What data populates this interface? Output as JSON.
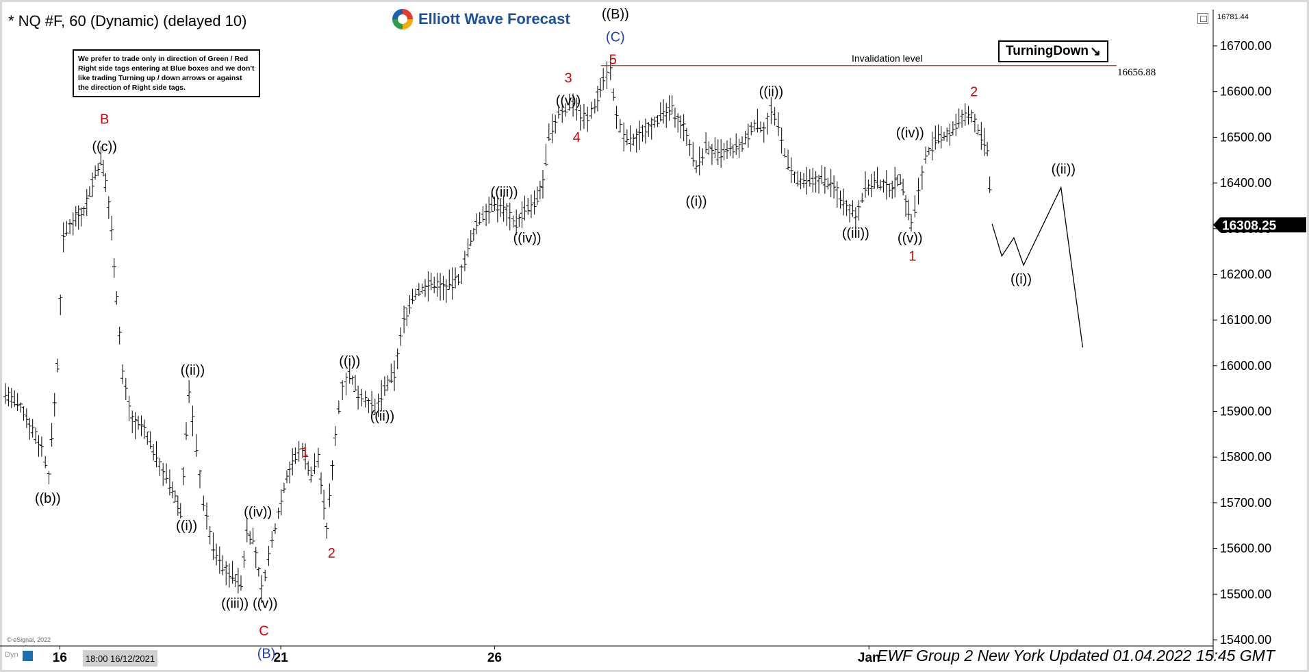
{
  "header": {
    "title": "* NQ #F, 60 (Dynamic) (delayed 10)",
    "logo_text": "Elliott Wave Forecast"
  },
  "notice": {
    "text": "We prefer to trade only in direction of Green / Red Right side tags entering at Blue boxes and we don't like trading Turning up / down arrows or against the direction of Right side tags."
  },
  "turning_tag": {
    "label": "TurningDown",
    "arrow": "↘"
  },
  "footer": {
    "text": "EWF Group 2  New York Updated 01.04.2022 15:45 GMT",
    "datetime_badge": "18:00 16/12/2021",
    "esignal": "© eSignal, 2022",
    "dyn": "Dyn"
  },
  "colors": {
    "red": "#d40000",
    "blue": "#1a3fc4",
    "black": "#000000",
    "invalidation_line": "#cc2222"
  },
  "chart_data": {
    "type": "line",
    "instrument": "NQ #F",
    "timeframe": "60",
    "ylim": [
      15360,
      16800
    ],
    "xlim": [
      0,
      100
    ],
    "y_ticks": [
      "15400.00",
      "15500.00",
      "15600.00",
      "15700.00",
      "15800.00",
      "15900.00",
      "16000.00",
      "16100.00",
      "16200.00",
      "16300.00",
      "16400.00",
      "16500.00",
      "16600.00",
      "16700.00"
    ],
    "x_ticks": [
      {
        "label": "16",
        "x": 4.5
      },
      {
        "label": "21",
        "x": 22.8
      },
      {
        "label": "26",
        "x": 40.5
      },
      {
        "label": "Jan",
        "x": 71.5
      }
    ],
    "top_price_label": "16781.44",
    "current_price": {
      "label": "16308.25",
      "value": 16308.25
    },
    "invalidation": {
      "label": "Invalidation level",
      "value": 16656.88,
      "value_label": "16656.88",
      "x_start": 49.3,
      "x_end": 92
    },
    "price_path": [
      [
        0,
        15940
      ],
      [
        1.5,
        15900
      ],
      [
        3,
        15820
      ],
      [
        3.6,
        15760
      ],
      [
        4.3,
        16000
      ],
      [
        4.8,
        16280
      ],
      [
        5.6,
        16320
      ],
      [
        6.5,
        16340
      ],
      [
        7.2,
        16400
      ],
      [
        7.9,
        16450
      ],
      [
        8.3,
        16400
      ],
      [
        8.8,
        16300
      ],
      [
        9.2,
        16150
      ],
      [
        9.7,
        15980
      ],
      [
        10.5,
        15880
      ],
      [
        11.5,
        15860
      ],
      [
        12.5,
        15800
      ],
      [
        13.6,
        15740
      ],
      [
        14.5,
        15680
      ],
      [
        15.2,
        15940
      ],
      [
        15.8,
        15820
      ],
      [
        16.4,
        15700
      ],
      [
        17.2,
        15600
      ],
      [
        18,
        15560
      ],
      [
        18.8,
        15540
      ],
      [
        19.5,
        15520
      ],
      [
        20,
        15640
      ],
      [
        20.5,
        15620
      ],
      [
        21.2,
        15510
      ],
      [
        21.8,
        15580
      ],
      [
        22.6,
        15680
      ],
      [
        23.3,
        15760
      ],
      [
        24,
        15800
      ],
      [
        24.6,
        15820
      ],
      [
        25.3,
        15760
      ],
      [
        25.9,
        15800
      ],
      [
        26.6,
        15640
      ],
      [
        27.3,
        15850
      ],
      [
        27.9,
        15960
      ],
      [
        28.5,
        15980
      ],
      [
        29.2,
        15940
      ],
      [
        29.8,
        15930
      ],
      [
        30.6,
        15900
      ],
      [
        31.4,
        15950
      ],
      [
        32.2,
        15980
      ],
      [
        33,
        16100
      ],
      [
        33.7,
        16150
      ],
      [
        34.5,
        16170
      ],
      [
        35.5,
        16180
      ],
      [
        36.5,
        16170
      ],
      [
        37.5,
        16190
      ],
      [
        38.3,
        16250
      ],
      [
        39,
        16310
      ],
      [
        39.8,
        16340
      ],
      [
        40.5,
        16350
      ],
      [
        41.5,
        16340
      ],
      [
        42.3,
        16310
      ],
      [
        43,
        16340
      ],
      [
        43.8,
        16350
      ],
      [
        44.5,
        16400
      ],
      [
        45,
        16500
      ],
      [
        45.8,
        16550
      ],
      [
        46.4,
        16560
      ],
      [
        47,
        16580
      ],
      [
        47.6,
        16550
      ],
      [
        48.2,
        16540
      ],
      [
        48.8,
        16570
      ],
      [
        49.5,
        16630
      ],
      [
        50.1,
        16650
      ],
      [
        50.6,
        16540
      ],
      [
        51.2,
        16500
      ],
      [
        52,
        16490
      ],
      [
        53,
        16520
      ],
      [
        54,
        16540
      ],
      [
        55.2,
        16560
      ],
      [
        56.4,
        16510
      ],
      [
        57.2,
        16430
      ],
      [
        58,
        16480
      ],
      [
        59,
        16460
      ],
      [
        60,
        16470
      ],
      [
        61,
        16480
      ],
      [
        62,
        16530
      ],
      [
        62.8,
        16520
      ],
      [
        63.4,
        16560
      ],
      [
        64,
        16520
      ],
      [
        64.8,
        16440
      ],
      [
        65.6,
        16400
      ],
      [
        66.6,
        16400
      ],
      [
        67.6,
        16410
      ],
      [
        68.6,
        16390
      ],
      [
        69.4,
        16360
      ],
      [
        70.4,
        16330
      ],
      [
        71.2,
        16390
      ],
      [
        72.2,
        16400
      ],
      [
        73.2,
        16390
      ],
      [
        74.1,
        16410
      ],
      [
        75,
        16310
      ],
      [
        75.6,
        16380
      ],
      [
        76.2,
        16460
      ],
      [
        77,
        16490
      ],
      [
        78.2,
        16510
      ],
      [
        79.2,
        16540
      ],
      [
        80,
        16550
      ],
      [
        80.8,
        16500
      ],
      [
        81.3,
        16470
      ],
      [
        81.7,
        16310
      ]
    ],
    "projection_path": [
      [
        81.7,
        16310
      ],
      [
        82.5,
        16240
      ],
      [
        83.5,
        16280
      ],
      [
        84.3,
        16220
      ],
      [
        87.4,
        16390
      ],
      [
        89.2,
        16040
      ]
    ],
    "labels": [
      {
        "text": "((b))",
        "x": 3.5,
        "y": 15700,
        "color": "black"
      },
      {
        "text": "B",
        "x": 8.2,
        "y": 16530,
        "color": "red"
      },
      {
        "text": "((c))",
        "x": 8.2,
        "y": 16470,
        "color": "black"
      },
      {
        "text": "((ii))",
        "x": 15.5,
        "y": 15980,
        "color": "black"
      },
      {
        "text": "((i))",
        "x": 15.0,
        "y": 15640,
        "color": "black"
      },
      {
        "text": "((iv))",
        "x": 20.9,
        "y": 15670,
        "color": "black"
      },
      {
        "text": "((iii))",
        "x": 19.0,
        "y": 15470,
        "color": "black"
      },
      {
        "text": "((v))",
        "x": 21.5,
        "y": 15470,
        "color": "black"
      },
      {
        "text": "C",
        "x": 21.4,
        "y": 15410,
        "color": "red"
      },
      {
        "text": "(B)",
        "x": 21.6,
        "y": 15360,
        "color": "blue"
      },
      {
        "text": "1",
        "x": 24.8,
        "y": 15800,
        "color": "red"
      },
      {
        "text": "2",
        "x": 27.0,
        "y": 15580,
        "color": "red"
      },
      {
        "text": "((i))",
        "x": 28.5,
        "y": 16000,
        "color": "black"
      },
      {
        "text": "((ii))",
        "x": 31.2,
        "y": 15880,
        "color": "black"
      },
      {
        "text": "((iii))",
        "x": 41.3,
        "y": 16370,
        "color": "black"
      },
      {
        "text": "((iv))",
        "x": 43.2,
        "y": 16270,
        "color": "black"
      },
      {
        "text": "3",
        "x": 46.6,
        "y": 16620,
        "color": "red"
      },
      {
        "text": "((v))",
        "x": 46.6,
        "y": 16570,
        "color": "black"
      },
      {
        "text": "4",
        "x": 47.3,
        "y": 16490,
        "color": "red"
      },
      {
        "text": "((B))",
        "x": 50.5,
        "y": 16760,
        "color": "black"
      },
      {
        "text": "(C)",
        "x": 50.5,
        "y": 16710,
        "color": "blue"
      },
      {
        "text": "5",
        "x": 50.3,
        "y": 16660,
        "color": "red"
      },
      {
        "text": "((i))",
        "x": 57.2,
        "y": 16350,
        "color": "black"
      },
      {
        "text": "((ii))",
        "x": 63.4,
        "y": 16590,
        "color": "black"
      },
      {
        "text": "((iii))",
        "x": 70.4,
        "y": 16280,
        "color": "black"
      },
      {
        "text": "((iv))",
        "x": 74.9,
        "y": 16500,
        "color": "black"
      },
      {
        "text": "((v))",
        "x": 74.9,
        "y": 16270,
        "color": "black"
      },
      {
        "text": "1",
        "x": 75.1,
        "y": 16230,
        "color": "red"
      },
      {
        "text": "2",
        "x": 80.2,
        "y": 16590,
        "color": "red"
      },
      {
        "text": "((ii))",
        "x": 87.6,
        "y": 16420,
        "color": "black"
      },
      {
        "text": "((i))",
        "x": 84.1,
        "y": 16180,
        "color": "black"
      }
    ],
    "grid": false
  }
}
